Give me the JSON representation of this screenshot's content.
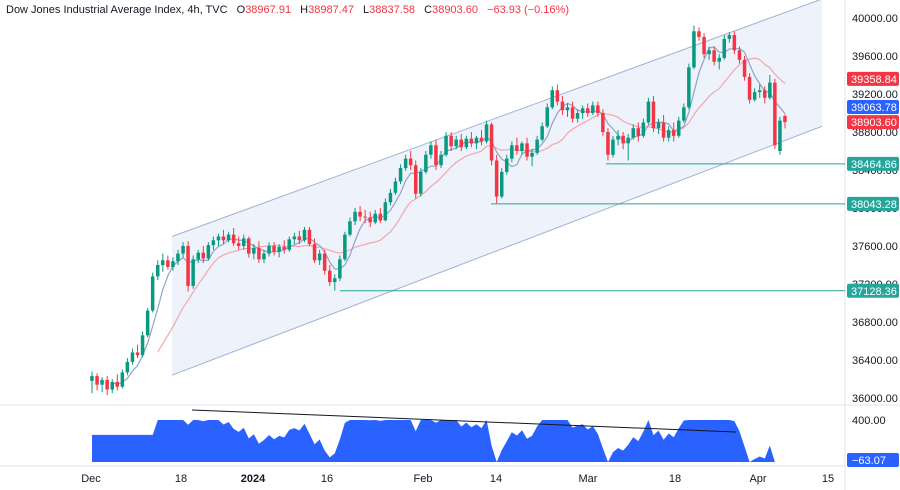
{
  "header": {
    "title": "Dow Jones Industrial Average Index, 4h, TVC",
    "open_label": "O",
    "open": "38967.91",
    "high_label": "H",
    "high": "38987.47",
    "low_label": "L",
    "low": "38837.58",
    "close_label": "C",
    "close": "38903.60",
    "change": "−63.93 (−0.16%)"
  },
  "colors": {
    "up": "#089981",
    "down": "#f23645",
    "channel": "#9fb3d9",
    "channel_fill": "#eef2fb",
    "ma_fast": "#8fa3c8",
    "ma_slow": "#f3a6ae",
    "level_line": "#26a69a",
    "oscillator": "#2962ff",
    "trend_line": "#131722"
  },
  "chart_data": [
    {
      "type": "candlestick",
      "title": "Dow Jones Industrial Average Index, 4h, TVC",
      "xlabel": "",
      "ylabel": "",
      "ylim": [
        35900,
        40150
      ],
      "y_ticks": [
        "40000.00",
        "39600.00",
        "39200.00",
        "38800.00",
        "38400.00",
        "38000.00",
        "37600.00",
        "37200.00",
        "36800.00",
        "36400.00",
        "36000.00"
      ],
      "x_ticks": [
        "Dec",
        "18",
        "2024",
        "16",
        "Feb",
        "14",
        "Mar",
        "18",
        "Apr",
        "15"
      ],
      "grid": false,
      "price_labels": [
        {
          "value": "39358.84",
          "color": "#f23645"
        },
        {
          "value": "39063.78",
          "color": "#2962ff"
        },
        {
          "value": "38903.60",
          "color": "#f23645"
        },
        {
          "value": "38464.86",
          "color": "#26a69a"
        },
        {
          "value": "38043.28",
          "color": "#26a69a"
        },
        {
          "value": "37128.36",
          "color": "#26a69a"
        }
      ],
      "horizontal_levels": [
        38464.86,
        38043.28,
        37128.36
      ],
      "candles": [
        {
          "o": 36180,
          "h": 36280,
          "l": 36050,
          "c": 36230
        },
        {
          "o": 36230,
          "h": 36260,
          "l": 36080,
          "c": 36140
        },
        {
          "o": 36140,
          "h": 36220,
          "l": 36060,
          "c": 36190
        },
        {
          "o": 36190,
          "h": 36230,
          "l": 36030,
          "c": 36090
        },
        {
          "o": 36090,
          "h": 36200,
          "l": 36050,
          "c": 36170
        },
        {
          "o": 36170,
          "h": 36250,
          "l": 36080,
          "c": 36120
        },
        {
          "o": 36120,
          "h": 36300,
          "l": 36100,
          "c": 36270
        },
        {
          "o": 36270,
          "h": 36420,
          "l": 36240,
          "c": 36380
        },
        {
          "o": 36380,
          "h": 36520,
          "l": 36350,
          "c": 36480
        },
        {
          "o": 36480,
          "h": 36560,
          "l": 36420,
          "c": 36450
        },
        {
          "o": 36450,
          "h": 36700,
          "l": 36430,
          "c": 36660
        },
        {
          "o": 36660,
          "h": 36950,
          "l": 36640,
          "c": 36920
        },
        {
          "o": 36920,
          "h": 37320,
          "l": 36900,
          "c": 37280
        },
        {
          "o": 37280,
          "h": 37450,
          "l": 37240,
          "c": 37400
        },
        {
          "o": 37400,
          "h": 37520,
          "l": 37330,
          "c": 37450
        },
        {
          "o": 37450,
          "h": 37500,
          "l": 37350,
          "c": 37380
        },
        {
          "o": 37380,
          "h": 37480,
          "l": 37340,
          "c": 37440
        },
        {
          "o": 37440,
          "h": 37560,
          "l": 37400,
          "c": 37520
        },
        {
          "o": 37520,
          "h": 37640,
          "l": 37480,
          "c": 37600
        },
        {
          "o": 37600,
          "h": 37650,
          "l": 37120,
          "c": 37180
        },
        {
          "o": 37180,
          "h": 37500,
          "l": 37150,
          "c": 37460
        },
        {
          "o": 37460,
          "h": 37560,
          "l": 37420,
          "c": 37530
        },
        {
          "o": 37530,
          "h": 37600,
          "l": 37420,
          "c": 37470
        },
        {
          "o": 37470,
          "h": 37640,
          "l": 37450,
          "c": 37610
        },
        {
          "o": 37610,
          "h": 37700,
          "l": 37560,
          "c": 37660
        },
        {
          "o": 37660,
          "h": 37730,
          "l": 37600,
          "c": 37700
        },
        {
          "o": 37700,
          "h": 37770,
          "l": 37620,
          "c": 37660
        },
        {
          "o": 37660,
          "h": 37750,
          "l": 37640,
          "c": 37720
        },
        {
          "o": 37720,
          "h": 37790,
          "l": 37600,
          "c": 37630
        },
        {
          "o": 37630,
          "h": 37700,
          "l": 37560,
          "c": 37600
        },
        {
          "o": 37600,
          "h": 37720,
          "l": 37560,
          "c": 37680
        },
        {
          "o": 37680,
          "h": 37700,
          "l": 37480,
          "c": 37520
        },
        {
          "o": 37520,
          "h": 37620,
          "l": 37460,
          "c": 37580
        },
        {
          "o": 37580,
          "h": 37650,
          "l": 37420,
          "c": 37460
        },
        {
          "o": 37460,
          "h": 37560,
          "l": 37420,
          "c": 37520
        },
        {
          "o": 37520,
          "h": 37640,
          "l": 37490,
          "c": 37600
        },
        {
          "o": 37600,
          "h": 37640,
          "l": 37500,
          "c": 37540
        },
        {
          "o": 37540,
          "h": 37620,
          "l": 37480,
          "c": 37590
        },
        {
          "o": 37590,
          "h": 37660,
          "l": 37520,
          "c": 37560
        },
        {
          "o": 37560,
          "h": 37700,
          "l": 37540,
          "c": 37670
        },
        {
          "o": 37670,
          "h": 37740,
          "l": 37620,
          "c": 37700
        },
        {
          "o": 37700,
          "h": 37760,
          "l": 37620,
          "c": 37660
        },
        {
          "o": 37660,
          "h": 37800,
          "l": 37640,
          "c": 37770
        },
        {
          "o": 37770,
          "h": 37800,
          "l": 37600,
          "c": 37620
        },
        {
          "o": 37620,
          "h": 37680,
          "l": 37420,
          "c": 37450
        },
        {
          "o": 37450,
          "h": 37560,
          "l": 37400,
          "c": 37520
        },
        {
          "o": 37520,
          "h": 37560,
          "l": 37300,
          "c": 37340
        },
        {
          "o": 37340,
          "h": 37400,
          "l": 37180,
          "c": 37220
        },
        {
          "o": 37220,
          "h": 37300,
          "l": 37130,
          "c": 37260
        },
        {
          "o": 37260,
          "h": 37500,
          "l": 37230,
          "c": 37460
        },
        {
          "o": 37460,
          "h": 37750,
          "l": 37440,
          "c": 37720
        },
        {
          "o": 37720,
          "h": 37900,
          "l": 37700,
          "c": 37860
        },
        {
          "o": 37860,
          "h": 38000,
          "l": 37820,
          "c": 37960
        },
        {
          "o": 37960,
          "h": 38020,
          "l": 37860,
          "c": 37910
        },
        {
          "o": 37910,
          "h": 37980,
          "l": 37840,
          "c": 37900
        },
        {
          "o": 37900,
          "h": 37960,
          "l": 37800,
          "c": 37850
        },
        {
          "o": 37850,
          "h": 37980,
          "l": 37830,
          "c": 37940
        },
        {
          "o": 37940,
          "h": 38000,
          "l": 37840,
          "c": 37870
        },
        {
          "o": 37870,
          "h": 38100,
          "l": 37860,
          "c": 38060
        },
        {
          "o": 38060,
          "h": 38200,
          "l": 38030,
          "c": 38160
        },
        {
          "o": 38160,
          "h": 38320,
          "l": 38140,
          "c": 38280
        },
        {
          "o": 38280,
          "h": 38460,
          "l": 38250,
          "c": 38420
        },
        {
          "o": 38420,
          "h": 38560,
          "l": 38390,
          "c": 38520
        },
        {
          "o": 38520,
          "h": 38600,
          "l": 38400,
          "c": 38450
        },
        {
          "o": 38450,
          "h": 38500,
          "l": 38100,
          "c": 38150
        },
        {
          "o": 38150,
          "h": 38420,
          "l": 38120,
          "c": 38380
        },
        {
          "o": 38380,
          "h": 38600,
          "l": 38360,
          "c": 38560
        },
        {
          "o": 38560,
          "h": 38700,
          "l": 38520,
          "c": 38660
        },
        {
          "o": 38660,
          "h": 38720,
          "l": 38400,
          "c": 38450
        },
        {
          "o": 38450,
          "h": 38600,
          "l": 38420,
          "c": 38560
        },
        {
          "o": 38560,
          "h": 38800,
          "l": 38540,
          "c": 38760
        },
        {
          "o": 38760,
          "h": 38800,
          "l": 38600,
          "c": 38650
        },
        {
          "o": 38650,
          "h": 38760,
          "l": 38620,
          "c": 38720
        },
        {
          "o": 38720,
          "h": 38780,
          "l": 38600,
          "c": 38640
        },
        {
          "o": 38640,
          "h": 38760,
          "l": 38620,
          "c": 38730
        },
        {
          "o": 38730,
          "h": 38800,
          "l": 38640,
          "c": 38680
        },
        {
          "o": 38680,
          "h": 38760,
          "l": 38620,
          "c": 38740
        },
        {
          "o": 38740,
          "h": 38820,
          "l": 38660,
          "c": 38700
        },
        {
          "o": 38700,
          "h": 38920,
          "l": 38680,
          "c": 38880
        },
        {
          "o": 38880,
          "h": 38900,
          "l": 38450,
          "c": 38500
        },
        {
          "o": 38500,
          "h": 38560,
          "l": 38050,
          "c": 38120
        },
        {
          "o": 38120,
          "h": 38420,
          "l": 38100,
          "c": 38380
        },
        {
          "o": 38380,
          "h": 38560,
          "l": 38350,
          "c": 38520
        },
        {
          "o": 38520,
          "h": 38700,
          "l": 38480,
          "c": 38660
        },
        {
          "o": 38660,
          "h": 38740,
          "l": 38560,
          "c": 38600
        },
        {
          "o": 38600,
          "h": 38700,
          "l": 38560,
          "c": 38680
        },
        {
          "o": 38680,
          "h": 38740,
          "l": 38500,
          "c": 38540
        },
        {
          "o": 38540,
          "h": 38620,
          "l": 38440,
          "c": 38580
        },
        {
          "o": 38580,
          "h": 38760,
          "l": 38560,
          "c": 38720
        },
        {
          "o": 38720,
          "h": 38900,
          "l": 38700,
          "c": 38860
        },
        {
          "o": 38860,
          "h": 39100,
          "l": 38840,
          "c": 39060
        },
        {
          "o": 39060,
          "h": 39280,
          "l": 39040,
          "c": 39240
        },
        {
          "o": 39240,
          "h": 39300,
          "l": 39080,
          "c": 39120
        },
        {
          "o": 39120,
          "h": 39180,
          "l": 38980,
          "c": 39030
        },
        {
          "o": 39030,
          "h": 39100,
          "l": 38960,
          "c": 39060
        },
        {
          "o": 39060,
          "h": 39120,
          "l": 38900,
          "c": 38940
        },
        {
          "o": 38940,
          "h": 39040,
          "l": 38900,
          "c": 39000
        },
        {
          "o": 39000,
          "h": 39080,
          "l": 38940,
          "c": 39050
        },
        {
          "o": 39050,
          "h": 39100,
          "l": 38960,
          "c": 39000
        },
        {
          "o": 39000,
          "h": 39120,
          "l": 38980,
          "c": 39080
        },
        {
          "o": 39080,
          "h": 39120,
          "l": 38960,
          "c": 39000
        },
        {
          "o": 39000,
          "h": 39040,
          "l": 38760,
          "c": 38800
        },
        {
          "o": 38800,
          "h": 38840,
          "l": 38500,
          "c": 38560
        },
        {
          "o": 38560,
          "h": 38760,
          "l": 38530,
          "c": 38720
        },
        {
          "o": 38720,
          "h": 38820,
          "l": 38660,
          "c": 38760
        },
        {
          "o": 38760,
          "h": 38800,
          "l": 38620,
          "c": 38680
        },
        {
          "o": 38680,
          "h": 38780,
          "l": 38500,
          "c": 38740
        },
        {
          "o": 38740,
          "h": 38880,
          "l": 38720,
          "c": 38840
        },
        {
          "o": 38840,
          "h": 38900,
          "l": 38700,
          "c": 38760
        },
        {
          "o": 38760,
          "h": 38940,
          "l": 38740,
          "c": 38900
        },
        {
          "o": 38900,
          "h": 39160,
          "l": 38880,
          "c": 39120
        },
        {
          "o": 39120,
          "h": 39180,
          "l": 38800,
          "c": 38840
        },
        {
          "o": 38840,
          "h": 38940,
          "l": 38780,
          "c": 38900
        },
        {
          "o": 38900,
          "h": 38980,
          "l": 38700,
          "c": 38740
        },
        {
          "o": 38740,
          "h": 38860,
          "l": 38700,
          "c": 38820
        },
        {
          "o": 38820,
          "h": 38900,
          "l": 38700,
          "c": 38760
        },
        {
          "o": 38760,
          "h": 38960,
          "l": 38740,
          "c": 38920
        },
        {
          "o": 38920,
          "h": 39100,
          "l": 38900,
          "c": 39060
        },
        {
          "o": 39060,
          "h": 39520,
          "l": 39040,
          "c": 39480
        },
        {
          "o": 39480,
          "h": 39920,
          "l": 39460,
          "c": 39860
        },
        {
          "o": 39860,
          "h": 39900,
          "l": 39760,
          "c": 39800
        },
        {
          "o": 39800,
          "h": 39840,
          "l": 39580,
          "c": 39620
        },
        {
          "o": 39620,
          "h": 39700,
          "l": 39560,
          "c": 39660
        },
        {
          "o": 39660,
          "h": 39700,
          "l": 39500,
          "c": 39540
        },
        {
          "o": 39540,
          "h": 39620,
          "l": 39460,
          "c": 39580
        },
        {
          "o": 39580,
          "h": 39820,
          "l": 39560,
          "c": 39780
        },
        {
          "o": 39780,
          "h": 39850,
          "l": 39740,
          "c": 39820
        },
        {
          "o": 39820,
          "h": 39860,
          "l": 39620,
          "c": 39660
        },
        {
          "o": 39660,
          "h": 39700,
          "l": 39520,
          "c": 39560
        },
        {
          "o": 39560,
          "h": 39600,
          "l": 39340,
          "c": 39380
        },
        {
          "o": 39380,
          "h": 39420,
          "l": 39100,
          "c": 39140
        },
        {
          "o": 39140,
          "h": 39260,
          "l": 39120,
          "c": 39220
        },
        {
          "o": 39220,
          "h": 39300,
          "l": 39160,
          "c": 39240
        },
        {
          "o": 39240,
          "h": 39280,
          "l": 39100,
          "c": 39160
        },
        {
          "o": 39160,
          "h": 39400,
          "l": 39140,
          "c": 39320
        },
        {
          "o": 39320,
          "h": 39360,
          "l": 38620,
          "c": 38660
        },
        {
          "o": 38600,
          "h": 38960,
          "l": 38560,
          "c": 38920
        },
        {
          "o": 38967.91,
          "h": 38987.47,
          "l": 38837.58,
          "c": 38903.6
        }
      ]
    },
    {
      "type": "area",
      "title": "",
      "ylim": [
        -63.07,
        500
      ],
      "y_ticks": [
        "400.00"
      ],
      "last_value_label": "−63.07"
    }
  ]
}
